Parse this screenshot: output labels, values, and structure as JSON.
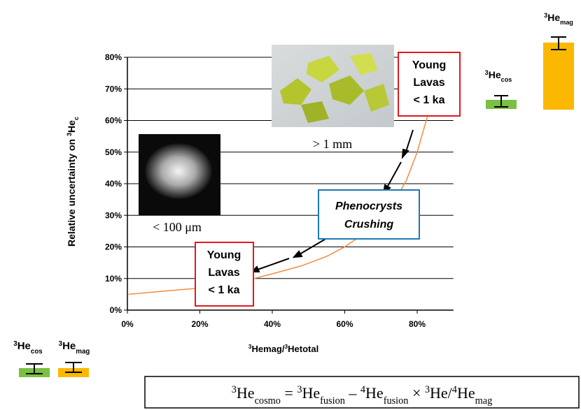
{
  "chart_data": {
    "type": "line",
    "x": [
      0.3,
      10,
      20,
      30,
      35,
      40,
      48,
      55,
      60,
      65,
      70,
      74,
      77,
      80,
      83
    ],
    "series": [
      {
        "color": "#f58b3c",
        "values": [
          5,
          6,
          7,
          9,
          10,
          11.5,
          14,
          17,
          20,
          24,
          29,
          35,
          41,
          50,
          62
        ]
      }
    ],
    "xlim": [
      0,
      90
    ],
    "ylim": [
      0,
      80
    ],
    "xticks": [
      {
        "value": 0,
        "label": "0%"
      },
      {
        "value": 20,
        "label": "20%"
      },
      {
        "value": 40,
        "label": "40%"
      },
      {
        "value": 60,
        "label": "60%"
      },
      {
        "value": 80,
        "label": "80%"
      }
    ],
    "yticks": [
      {
        "value": 0,
        "label": "0%"
      },
      {
        "value": 10,
        "label": "10%"
      },
      {
        "value": 20,
        "label": "20%"
      },
      {
        "value": 30,
        "label": "30%"
      },
      {
        "value": 40,
        "label": "40%"
      },
      {
        "value": 50,
        "label": "50%"
      },
      {
        "value": 60,
        "label": "60%"
      },
      {
        "value": 70,
        "label": "70%"
      },
      {
        "value": 80,
        "label": "80%"
      }
    ],
    "grid": true,
    "xlabel": [
      {
        "sup": "3",
        "main": "Hemag/"
      },
      {
        "sup": "3",
        "main": "Hetotal"
      }
    ],
    "ylabel": [
      {
        "main": "Relative uncertainty on "
      },
      {
        "sup": "3",
        "main": "He",
        "sub": "c"
      }
    ]
  },
  "annotations": {
    "large_grain": "> 1 mm",
    "small_grain": "< 100 μm",
    "young_lavas_top": [
      "Young",
      "Lavas",
      "< 1 ka"
    ],
    "young_lavas_bottom": [
      "Young",
      "Lavas",
      "< 1 ka"
    ],
    "crushing": [
      "Phenocrysts",
      "Crushing"
    ],
    "he_mag_right": [
      {
        "sup": "3",
        "main": "He",
        "sub": "mag"
      }
    ],
    "he_cos_right": [
      {
        "sup": "3",
        "main": "He",
        "sub": "cos"
      }
    ],
    "he_cos_left": [
      {
        "sup": "3",
        "main": "He",
        "sub": "cos"
      }
    ],
    "he_mag_left": [
      {
        "sup": "3",
        "main": "He",
        "sub": "mag"
      }
    ],
    "formula": [
      {
        "sup": "3",
        "main": "He",
        "sub": "cosmo"
      },
      {
        "main": " = "
      },
      {
        "sup": "3",
        "main": "He",
        "sub": "fusion"
      },
      {
        "main": " – "
      },
      {
        "sup": "4",
        "main": "He",
        "sub": "fusion"
      },
      {
        "main": " × "
      },
      {
        "sup": "3",
        "main": "He/"
      },
      {
        "sup": "4",
        "main": "He",
        "sub": "mag"
      }
    ]
  }
}
